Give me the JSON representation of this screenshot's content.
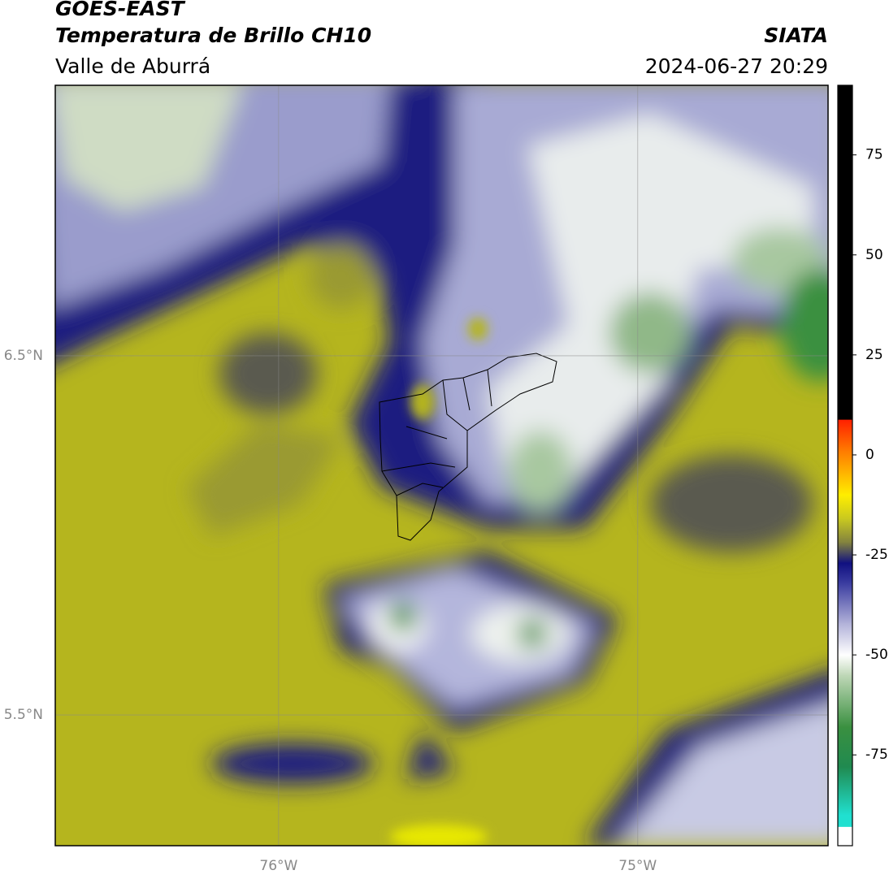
{
  "header": {
    "title": "GOES-EAST",
    "subtitle": "Temperatura de Brillo CH10",
    "region": "Valle de Aburrá",
    "source": "SIATA",
    "datetime": "2024-06-27 20:29"
  },
  "map": {
    "xlim": [
      -76.622,
      -74.47
    ],
    "ylim": [
      5.136,
      7.253
    ],
    "xticks": [
      {
        "value": -76,
        "label": "76°W"
      },
      {
        "value": -75,
        "label": "75°W"
      }
    ],
    "yticks": [
      {
        "value": 6.5,
        "label": "6.5°N"
      },
      {
        "value": 5.5,
        "label": "5.5°N"
      }
    ]
  },
  "colorbar": {
    "lim": [
      -97.7,
      92.4
    ],
    "ticks": [
      75,
      50,
      25,
      0,
      -25,
      -50,
      -75
    ],
    "stops": [
      {
        "value": 92.4,
        "color": "#000000"
      },
      {
        "value": 8.8,
        "color": "#000000"
      },
      {
        "value": 8.8,
        "color": "#ff2000"
      },
      {
        "value": 2,
        "color": "#ff7000"
      },
      {
        "value": -10,
        "color": "#ffee00"
      },
      {
        "value": -16,
        "color": "#c8c820"
      },
      {
        "value": -22,
        "color": "#808040"
      },
      {
        "value": -27,
        "color": "#101080"
      },
      {
        "value": -32,
        "color": "#3a3ca0"
      },
      {
        "value": -42,
        "color": "#b0b0d8"
      },
      {
        "value": -50,
        "color": "#ffffff"
      },
      {
        "value": -55,
        "color": "#c0d8b8"
      },
      {
        "value": -68,
        "color": "#3a9040"
      },
      {
        "value": -78,
        "color": "#208a50"
      },
      {
        "value": -90,
        "color": "#20e0d0"
      },
      {
        "value": -93,
        "color": "#20e0d0"
      },
      {
        "value": -93,
        "color": "#ffffff"
      },
      {
        "value": -97.7,
        "color": "#ffffff"
      }
    ]
  }
}
